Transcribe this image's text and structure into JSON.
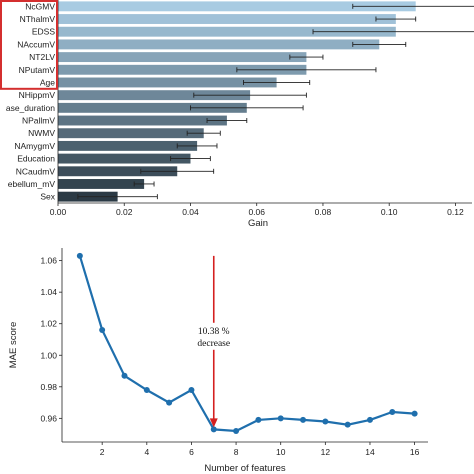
{
  "chart_data": [
    {
      "type": "bar",
      "orientation": "horizontal",
      "categories": [
        "NcGMV",
        "NThalmV",
        "EDSS",
        "NAccumV",
        "NT2LV",
        "NPutamV",
        "Age",
        "NHippmV",
        "Disease_duration",
        "NPallmV",
        "NWMV",
        "NAmygmV",
        "Education",
        "NCaudmV",
        "NCerebellum_mV",
        "Sex"
      ],
      "tick_labels": [
        "NcGMV",
        "NThalmV",
        "EDSS",
        "NAccumV",
        "NT2LV",
        "NPutamV",
        "Age",
        "NHippmV",
        "ase_duration",
        "NPallmV",
        "NWMV",
        "NAmygmV",
        "Education",
        "NCaudmV",
        "ebellum_mV",
        "Sex"
      ],
      "values": [
        0.108,
        0.102,
        0.102,
        0.097,
        0.075,
        0.075,
        0.066,
        0.058,
        0.057,
        0.051,
        0.044,
        0.042,
        0.04,
        0.036,
        0.026,
        0.018
      ],
      "error": [
        0.019,
        0.006,
        0.025,
        0.008,
        0.005,
        0.021,
        0.01,
        0.017,
        0.017,
        0.006,
        0.005,
        0.006,
        0.006,
        0.011,
        0.003,
        0.012
      ],
      "xlabel": "Gain",
      "ylabel": "",
      "xlim": [
        0,
        0.125
      ],
      "xticks": [
        0.0,
        0.02,
        0.04,
        0.06,
        0.08,
        0.1,
        0.12
      ],
      "xtick_labels": [
        "0.00",
        "0.02",
        "0.04",
        "0.06",
        "0.08",
        "0.10",
        "0.12"
      ],
      "highlight_top_n": 7,
      "highlight_color": "#d42f2f",
      "color_light": "#a8cbe2",
      "color_dark": "#2b3a45",
      "grid": false
    },
    {
      "type": "line",
      "x": [
        1,
        2,
        3,
        4,
        5,
        6,
        7,
        8,
        9,
        10,
        11,
        12,
        13,
        14,
        15,
        16
      ],
      "y": [
        1.063,
        1.016,
        0.987,
        0.978,
        0.97,
        0.978,
        0.953,
        0.952,
        0.959,
        0.96,
        0.959,
        0.958,
        0.956,
        0.959,
        0.964,
        0.963
      ],
      "xlabel": "Number of features",
      "ylabel": "MAE score",
      "xlim": [
        0.2,
        16.6
      ],
      "ylim": [
        0.945,
        1.068
      ],
      "xticks": [
        2,
        4,
        6,
        8,
        10,
        12,
        14,
        16
      ],
      "yticks": [
        0.96,
        0.98,
        1.0,
        1.02,
        1.04,
        1.06
      ],
      "ytick_labels": [
        "0.96",
        "0.98",
        "1.00",
        "1.02",
        "1.04",
        "1.06"
      ],
      "line_color": "#1f6fad",
      "grid": false,
      "annotation": {
        "text_line1": "10.38 %",
        "text_line2": "decrease",
        "arrow_x": 7,
        "arrow_from_y": 1.063,
        "arrow_to_y": 0.953,
        "color": "#d42020"
      }
    }
  ]
}
